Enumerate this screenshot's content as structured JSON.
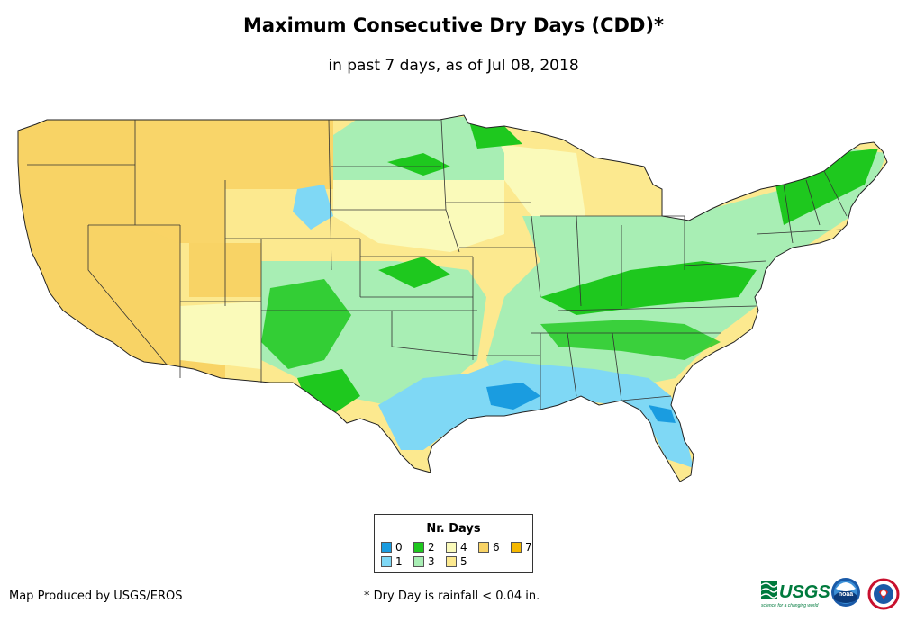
{
  "title": "Maximum Consecutive Dry Days (CDD)*",
  "subtitle": "in past 7 days, as of Jul 08, 2018",
  "legend": {
    "title": "Nr. Days",
    "items": [
      {
        "label": "0",
        "color": "#1a9ce0"
      },
      {
        "label": "1",
        "color": "#7fd8f5"
      },
      {
        "label": "2",
        "color": "#1ec81e"
      },
      {
        "label": "3",
        "color": "#a8eeb4"
      },
      {
        "label": "4",
        "color": "#fafaba"
      },
      {
        "label": "5",
        "color": "#fce98f"
      },
      {
        "label": "6",
        "color": "#f8d365"
      },
      {
        "label": "7",
        "color": "#f5b800"
      }
    ]
  },
  "footer": {
    "producer": "Map Produced by USGS/EROS",
    "note": "* Dry Day is rainfall < 0.04 in."
  },
  "logos": {
    "usgs": "USGS",
    "usgs_tagline": "science for a changing world",
    "noaa": "noaa"
  }
}
